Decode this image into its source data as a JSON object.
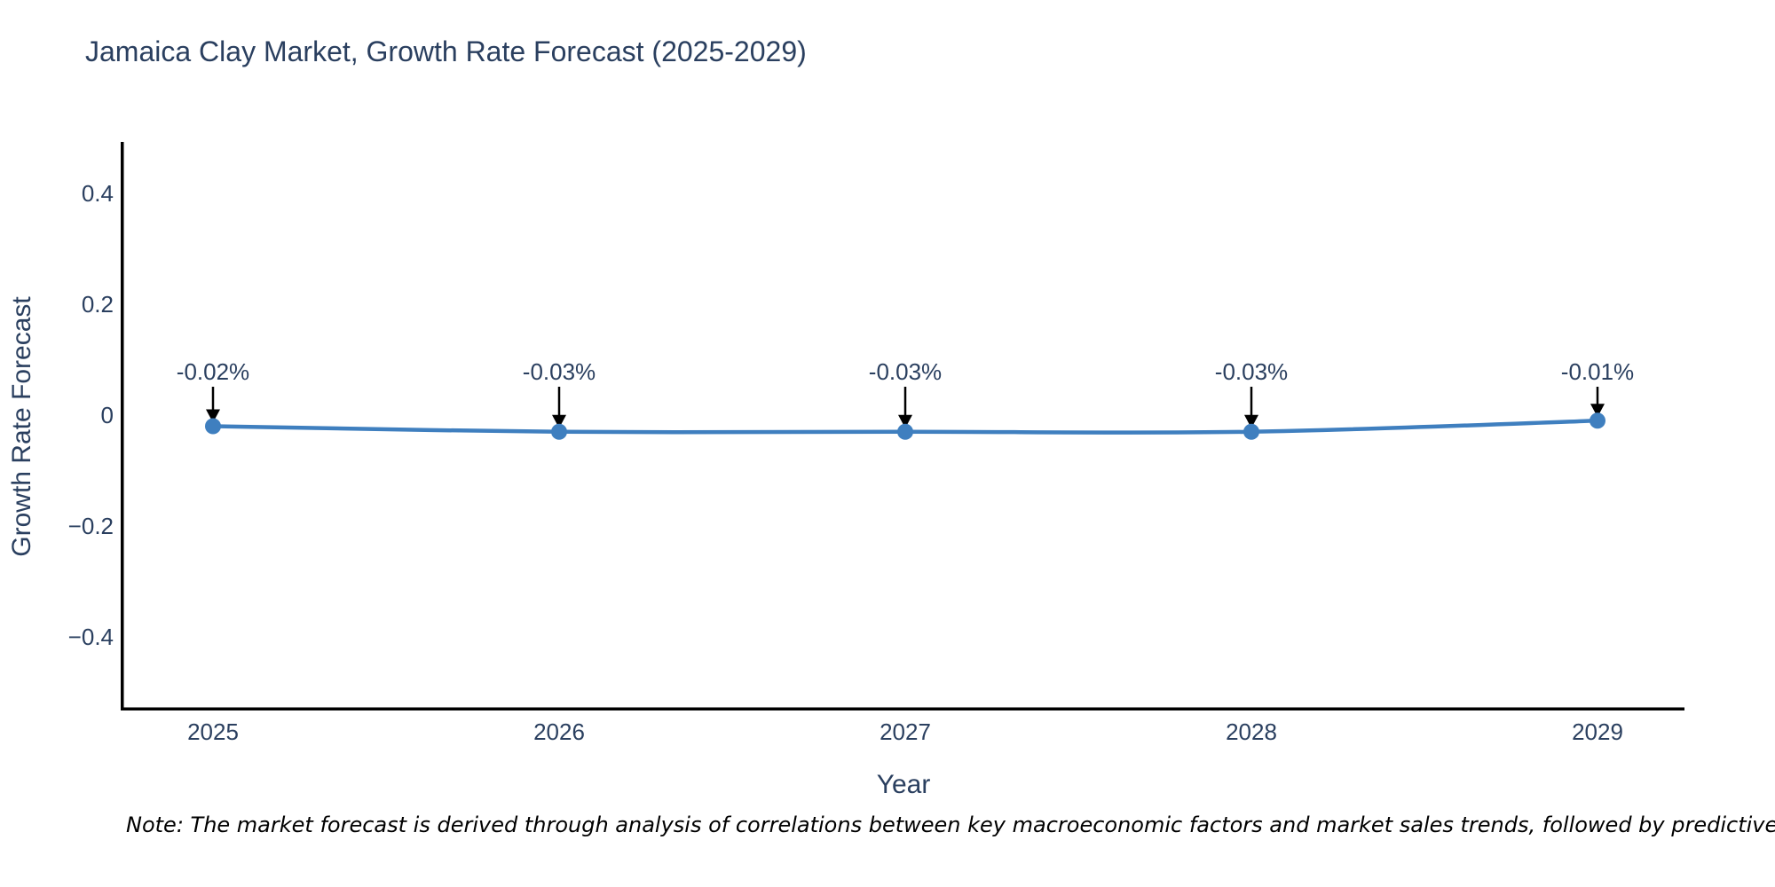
{
  "page": {
    "background": "#ffffff"
  },
  "chart_data": {
    "type": "line",
    "title": "Jamaica Clay Market, Growth Rate Forecast (2025-2029)",
    "xlabel": "Year",
    "ylabel": "Growth Rate Forecast",
    "categories": [
      "2025",
      "2026",
      "2027",
      "2028",
      "2029"
    ],
    "values": [
      -0.02,
      -0.03,
      -0.03,
      -0.03,
      -0.01
    ],
    "point_labels": [
      "-0.02%",
      "-0.03%",
      "-0.03%",
      "-0.03%",
      "-0.01%"
    ],
    "yticks": [
      0.4,
      0.2,
      0,
      -0.2,
      -0.4
    ],
    "ytick_labels": [
      "0.4",
      "0.2",
      "0",
      "−0.2",
      "−0.4"
    ],
    "ylim": [
      -0.53,
      0.49
    ],
    "grid": false,
    "legend_position": "none",
    "line_color": "#3f7fbf",
    "marker_color": "#3f7fbf",
    "arrow_color": "#000000",
    "axis_color": "#000000",
    "text_color": "#2a3f5f"
  },
  "note": {
    "text": "Note: The market forecast is derived through analysis of correlations between key macroeconomic factors and market sales trends, followed by predictive modeling to project future sales."
  }
}
